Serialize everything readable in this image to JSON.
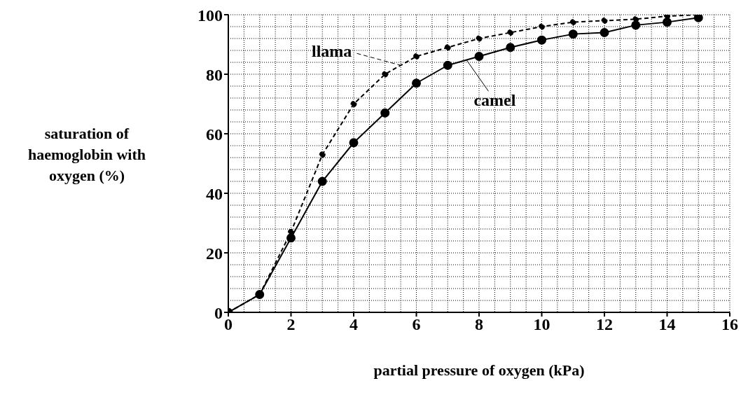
{
  "chart_data": {
    "type": "line",
    "xlabel": "partial pressure of oxygen (kPa)",
    "ylabel": "saturation of haemoglobin with oxygen (%)",
    "x": [
      0,
      1,
      2,
      3,
      4,
      5,
      6,
      7,
      8,
      9,
      10,
      11,
      12,
      13,
      14,
      15
    ],
    "series": [
      {
        "name": "llama",
        "color": "#000000",
        "line_style": "dashed",
        "values": [
          0,
          6,
          27,
          53,
          70,
          80,
          86,
          89,
          92,
          94,
          96,
          97.5,
          98,
          98.5,
          99.5,
          100
        ]
      },
      {
        "name": "camel",
        "color": "#000000",
        "line_style": "solid",
        "values": [
          0,
          6,
          25,
          44,
          57,
          67,
          77,
          83,
          86,
          89,
          91.5,
          93.5,
          94,
          96.5,
          97.5,
          99
        ]
      }
    ],
    "xlim": [
      0,
      16
    ],
    "xticks": [
      0,
      2,
      4,
      6,
      8,
      10,
      12,
      14,
      16
    ],
    "ylim": [
      0,
      100
    ],
    "yticks": [
      0,
      20,
      40,
      60,
      80,
      100
    ],
    "grid": true,
    "marker": "circle"
  }
}
